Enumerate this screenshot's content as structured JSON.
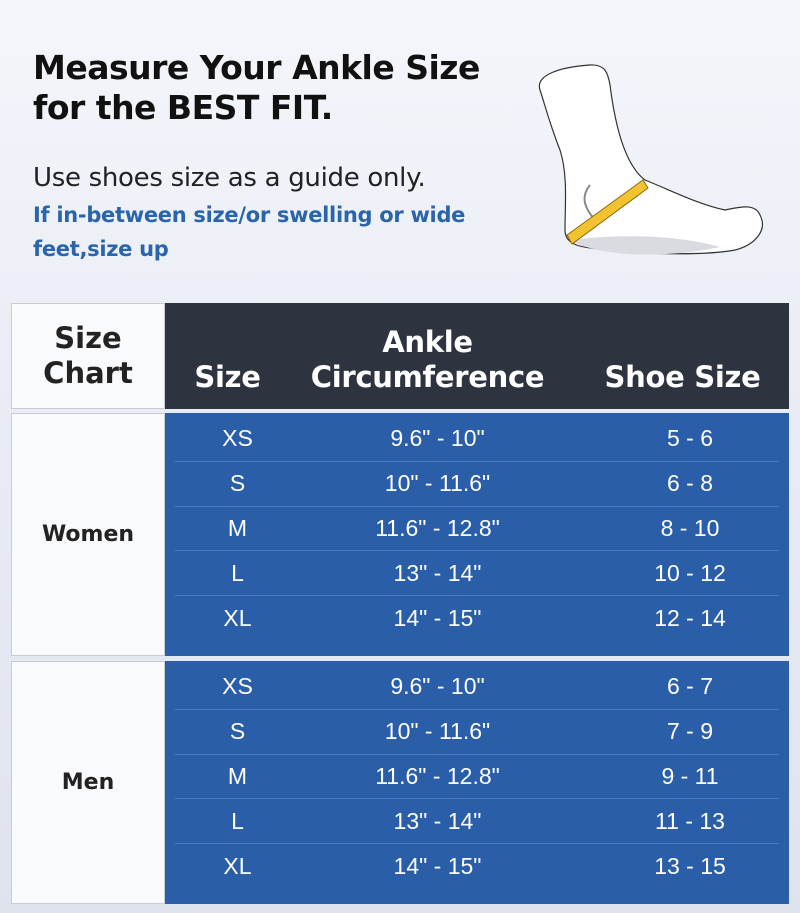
{
  "heading": {
    "line1": "Measure Your Ankle Size",
    "line2": "for the BEST FIT."
  },
  "subheading": "Use shoes size as a guide only.",
  "note": "If in-between size/or swelling or wide feet,size up",
  "colors": {
    "header": "#2d3440",
    "table_body": "#2a5ea8",
    "note": "#2a64aa",
    "tape": "#f2c230"
  },
  "table": {
    "corner": {
      "line1": "Size",
      "line2": "Chart"
    },
    "headers": {
      "size": "Size",
      "ankle1": "Ankle",
      "ankle2": "Circumference",
      "shoe": "Shoe Size"
    },
    "groups": [
      {
        "label": "Women",
        "rows": [
          {
            "size": "XS",
            "ankle": "9.6\" - 10\"",
            "shoe": "5 - 6"
          },
          {
            "size": "S",
            "ankle": "10\" - 11.6\"",
            "shoe": "6 - 8"
          },
          {
            "size": "M",
            "ankle": "11.6\" - 12.8\"",
            "shoe": "8 - 10"
          },
          {
            "size": "L",
            "ankle": "13\" - 14\"",
            "shoe": "10 - 12"
          },
          {
            "size": "XL",
            "ankle": "14\" - 15\"",
            "shoe": "12 - 14"
          }
        ]
      },
      {
        "label": "Men",
        "rows": [
          {
            "size": "XS",
            "ankle": "9.6\" - 10\"",
            "shoe": "6 - 7"
          },
          {
            "size": "S",
            "ankle": "10\" - 11.6\"",
            "shoe": "7 - 9"
          },
          {
            "size": "M",
            "ankle": "11.6\" - 12.8\"",
            "shoe": "9 -  11"
          },
          {
            "size": "L",
            "ankle": "13\" - 14\"",
            "shoe": "11 - 13"
          },
          {
            "size": "XL",
            "ankle": "14\" - 15\"",
            "shoe": "13 - 15"
          }
        ]
      }
    ]
  }
}
